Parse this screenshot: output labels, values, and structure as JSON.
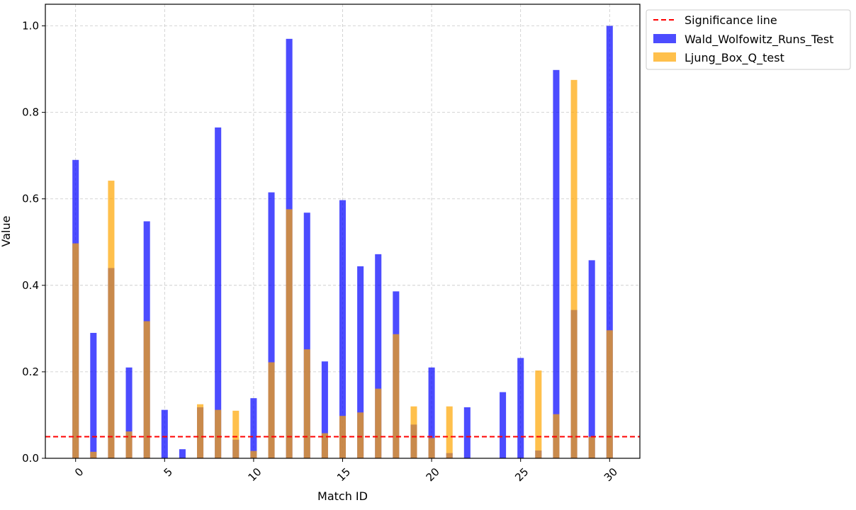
{
  "chart_data": {
    "type": "bar",
    "xlabel": "Match ID",
    "ylabel": "Value",
    "ylim": [
      0,
      1.05
    ],
    "xlim": [
      -1.7,
      31.7
    ],
    "x_ticks": [
      0,
      5,
      10,
      15,
      20,
      25,
      30
    ],
    "x_tick_labels": [
      "0",
      "5",
      "10",
      "15",
      "20",
      "25",
      "30"
    ],
    "y_ticks": [
      0.0,
      0.2,
      0.4,
      0.6,
      0.8,
      1.0
    ],
    "y_tick_labels": [
      "0.0",
      "0.2",
      "0.4",
      "0.6",
      "0.8",
      "1.0"
    ],
    "grid": true,
    "legend_position": "outside-top-right",
    "x": [
      0,
      1,
      2,
      3,
      4,
      5,
      6,
      7,
      8,
      9,
      10,
      11,
      12,
      13,
      14,
      15,
      16,
      17,
      18,
      19,
      20,
      21,
      22,
      23,
      24,
      25,
      26,
      27,
      28,
      29,
      30
    ],
    "series": [
      {
        "name": "Wald_Wolfowitz_Runs_Test",
        "color": "#0000ff",
        "opacity": 0.7,
        "values": [
          0.69,
          0.29,
          0.44,
          0.21,
          0.548,
          0.112,
          0.021,
          0.118,
          0.765,
          0.043,
          0.139,
          0.615,
          0.97,
          0.568,
          0.224,
          0.597,
          0.444,
          0.472,
          0.386,
          0.078,
          0.21,
          0.012,
          0.118,
          0.0,
          0.153,
          0.232,
          0.018,
          0.898,
          0.343,
          0.458,
          1.0
        ]
      },
      {
        "name": "Ljung_Box_Q_test",
        "color": "#ffa500",
        "opacity": 0.7,
        "values": [
          0.497,
          0.015,
          0.642,
          0.062,
          0.317,
          0.0,
          0.0,
          0.125,
          0.112,
          0.11,
          0.017,
          0.222,
          0.576,
          0.252,
          0.058,
          0.098,
          0.106,
          0.161,
          0.287,
          0.12,
          0.047,
          0.12,
          0.0,
          0.0,
          0.0,
          0.0,
          0.203,
          0.102,
          0.875,
          0.05,
          0.296
        ]
      }
    ],
    "reference_lines": [
      {
        "name": "Significance line",
        "y": 0.05,
        "color": "#ff0000",
        "style": "dashed"
      }
    ]
  }
}
